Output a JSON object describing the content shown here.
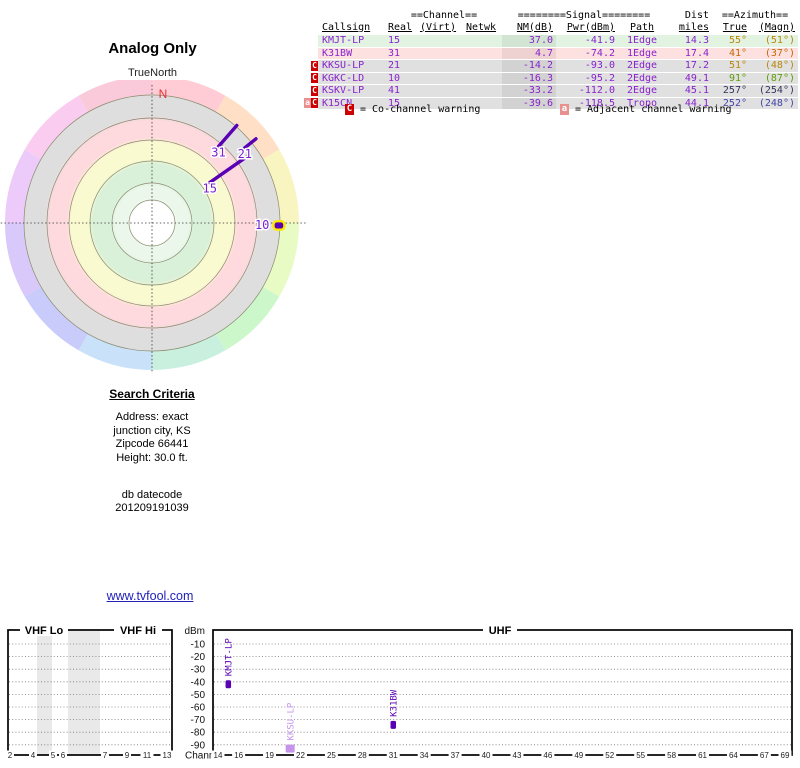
{
  "polar": {
    "title": "Analog Only",
    "orientation_label": "TrueNorth",
    "north_label": "N",
    "accent_marker_color": "#5a00b4",
    "highlight_color": "#ffe800"
  },
  "table": {
    "group_headers": {
      "channel": "==Channel==",
      "signal": "========Signal========",
      "dist": "Dist",
      "azimuth": "==Azimuth=="
    },
    "columns": [
      "Callsign",
      "Real",
      "(Virt)",
      "Netwk",
      "NM(dB)",
      "Pwr(dBm)",
      "Path",
      "miles",
      "True",
      "(Magn)"
    ],
    "text_color": "#8822cc",
    "rows": [
      {
        "warnings": [],
        "callsign": "KMJT-LP",
        "real": "15",
        "virt": "",
        "netwk": "",
        "nm": "37.0",
        "pwr": "-41.9",
        "path": "1Edge",
        "miles": "14.3",
        "true": "55°",
        "magn": "(51°)",
        "row_bg": "#e2f3e2",
        "nm_bg": "#d2e4d2",
        "az_color": "#b8860b"
      },
      {
        "warnings": [],
        "callsign": "K31BW",
        "real": "31",
        "virt": "",
        "netwk": "",
        "nm": "4.7",
        "pwr": "-74.2",
        "path": "1Edge",
        "miles": "17.4",
        "true": "41°",
        "magn": "(37°)",
        "row_bg": "#fde1e1",
        "nm_bg": "#eed2d2",
        "az_color": "#c86400"
      },
      {
        "warnings": [
          "C"
        ],
        "callsign": "KKSU-LP",
        "real": "21",
        "virt": "",
        "netwk": "",
        "nm": "-14.2",
        "pwr": "-93.0",
        "path": "2Edge",
        "miles": "17.2",
        "true": "51°",
        "magn": "(48°)",
        "row_bg": "#e0e0e0",
        "nm_bg": "#d2d2d2",
        "az_color": "#b8860b"
      },
      {
        "warnings": [
          "C"
        ],
        "callsign": "KGKC-LD",
        "real": "10",
        "virt": "",
        "netwk": "",
        "nm": "-16.3",
        "pwr": "-95.2",
        "path": "2Edge",
        "miles": "49.1",
        "true": "91°",
        "magn": "(87°)",
        "row_bg": "#e0e0e0",
        "nm_bg": "#d2d2d2",
        "az_color": "#5f9c05"
      },
      {
        "warnings": [
          "C"
        ],
        "callsign": "KSKV-LP",
        "real": "41",
        "virt": "",
        "netwk": "",
        "nm": "-33.2",
        "pwr": "-112.0",
        "path": "2Edge",
        "miles": "45.1",
        "true": "257°",
        "magn": "(254°)",
        "row_bg": "#e0e0e0",
        "nm_bg": "#d2d2d2",
        "az_color": "#34345e"
      },
      {
        "warnings": [
          "a",
          "C"
        ],
        "callsign": "K15CN",
        "real": "15",
        "virt": "",
        "netwk": "",
        "nm": "-39.6",
        "pwr": "-118.5",
        "path": "Tropo",
        "miles": "44.1",
        "true": "252°",
        "magn": "(248°)",
        "row_bg": "#e0e0e0",
        "nm_bg": "#d2d2d2",
        "az_color": "#4444aa"
      }
    ]
  },
  "legend": {
    "co_symbol": "C",
    "co_label": "= Co-channel warning",
    "adj_symbol": "a",
    "adj_label": "= Adjacent channel warning"
  },
  "search_criteria": {
    "title": "Search Criteria",
    "lines": [
      "Address: exact",
      "junction city, KS",
      "Zipcode 66441",
      "Height: 30.0 ft."
    ],
    "footer_lines": [
      "db datecode",
      "201209191039"
    ]
  },
  "link": {
    "text": "www.tvfool.com"
  },
  "chart_data": [
    {
      "type": "scatter",
      "title": "Analog Only",
      "subtitle": "TrueNorth",
      "north_label": "N",
      "notes": "polar compass plot; radius = signal strength (stronger toward center), angle = true azimuth",
      "points": [
        {
          "label": "15",
          "azimuth_true_deg": 55,
          "nm_db": 37.0
        },
        {
          "label": "31",
          "azimuth_true_deg": 41,
          "nm_db": 4.7
        },
        {
          "label": "21",
          "azimuth_true_deg": 51,
          "nm_db": -14.2
        },
        {
          "label": "10",
          "azimuth_true_deg": 91,
          "nm_db": -16.3,
          "highlighted": true
        }
      ],
      "hue_ring_colors": [
        "#ffccd5",
        "#ffdfc6",
        "#f8f5c0",
        "#e8fbc4",
        "#ccf7cb",
        "#c9f0df",
        "#c9e2fa",
        "#c9ccfa",
        "#d9c9fa",
        "#eccafa",
        "#facdf0",
        "#fac9da"
      ]
    },
    {
      "type": "bar",
      "ylabel": "dBm",
      "xlabel": "Channel",
      "panel_labels": [
        "VHF Lo",
        "VHF Hi",
        "UHF"
      ],
      "y_ticks": [
        -10,
        -20,
        -30,
        -40,
        -50,
        -60,
        -70,
        -80,
        -90
      ],
      "vhf_ticks": [
        2,
        4,
        5,
        6,
        7,
        9,
        11,
        13
      ],
      "uhf_ticks": [
        14,
        16,
        19,
        22,
        25,
        28,
        31,
        34,
        37,
        40,
        43,
        46,
        49,
        52,
        55,
        58,
        61,
        64,
        67,
        69
      ],
      "bars": [
        {
          "callsign": "KMJT-LP",
          "channel": 15,
          "pwr_dbm": -41.9,
          "color": "#5a00b4",
          "width": 5.5
        },
        {
          "callsign": "KKSU-LP",
          "channel": 21,
          "pwr_dbm": -93.0,
          "color": "#c694ea",
          "width": 9
        },
        {
          "callsign": "K31BW",
          "channel": 31,
          "pwr_dbm": -74.2,
          "color": "#5a00b4",
          "width": 5.5
        }
      ]
    }
  ]
}
